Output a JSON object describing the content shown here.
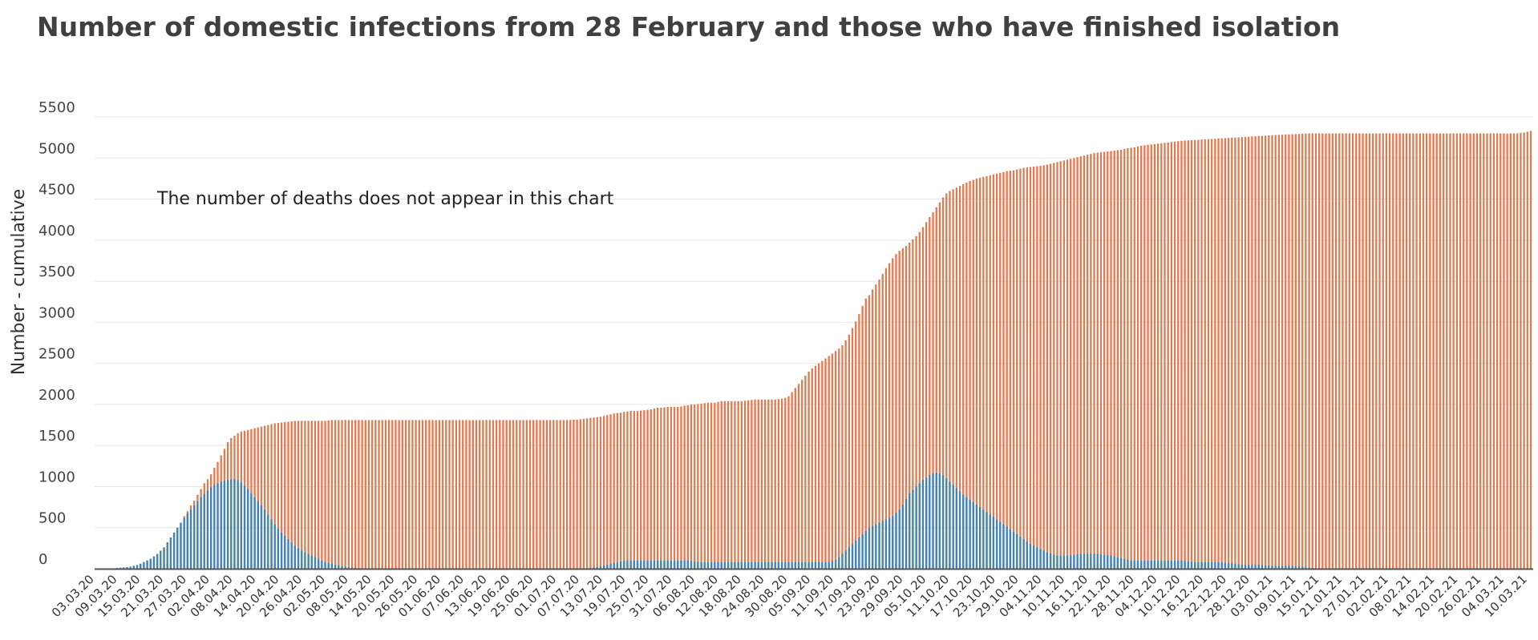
{
  "chart_data": {
    "type": "bar",
    "title": "Number of domestic infections from 28 February and those who have finished isolation",
    "ylabel": "Number - cumulative",
    "xlabel": "",
    "ylim": [
      0,
      5500
    ],
    "yticks": [
      0,
      500,
      1000,
      1500,
      2000,
      2500,
      3000,
      3500,
      4000,
      4500,
      5000,
      5500
    ],
    "annotation": "The number of deaths does not appear in this chart",
    "grid": true,
    "legend": "none",
    "colors": {
      "total": "#e07a50",
      "active": "#3d85b8",
      "grid": "#e4e4e4",
      "axis": "#555555"
    },
    "x_tick_labels": [
      "03.03.20",
      "09.03.20",
      "15.03.20",
      "21.03.20",
      "27.03.20",
      "02.04.20",
      "08.04.20",
      "14.04.20",
      "20.04.20",
      "26.04.20",
      "02.05.20",
      "08.05.20",
      "14.05.20",
      "20.05.20",
      "26.05.20",
      "01.06.20",
      "07.06.20",
      "13.06.20",
      "19.06.20",
      "25.06.20",
      "01.07.20",
      "07.07.20",
      "13.07.20",
      "19.07.20",
      "25.07.20",
      "31.07.20",
      "06.08.20",
      "12.08.20",
      "18.08.20",
      "24.08.20",
      "30.08.20",
      "05.09.20",
      "11.09.20",
      "17.09.20",
      "23.09.20",
      "29.09.20",
      "05.10.20",
      "11.10.20",
      "17.10.20",
      "23.10.20",
      "29.10.20",
      "04.11.20",
      "10.11.20",
      "16.11.20",
      "22.11.20",
      "28.11.20",
      "04.12.20",
      "10.12.20",
      "16.12.20",
      "22.12.20",
      "28.12.20",
      "03.01.21",
      "09.01.21",
      "15.01.21",
      "21.01.21",
      "27.01.21",
      "02.02.21",
      "08.02.21",
      "14.02.21",
      "20.02.21",
      "26.02.21",
      "04.03.21",
      "10.03.21"
    ],
    "series": [
      {
        "key": "total",
        "values": [
          0,
          0,
          3,
          4,
          10,
          12,
          15,
          20,
          25,
          35,
          45,
          60,
          80,
          100,
          120,
          150,
          180,
          220,
          260,
          320,
          380,
          440,
          500,
          560,
          640,
          700,
          770,
          830,
          900,
          970,
          1040,
          1090,
          1150,
          1230,
          1300,
          1380,
          1460,
          1540,
          1590,
          1620,
          1650,
          1670,
          1680,
          1690,
          1700,
          1710,
          1720,
          1730,
          1740,
          1750,
          1760,
          1770,
          1775,
          1780,
          1785,
          1790,
          1795,
          1800,
          1800,
          1800,
          1800,
          1800,
          1800,
          1800,
          1800,
          1800,
          1800,
          1805,
          1810,
          1810,
          1810,
          1810,
          1810,
          1810,
          1810,
          1810,
          1810,
          1810,
          1810,
          1810,
          1810,
          1810,
          1810,
          1810,
          1810,
          1810,
          1810,
          1810,
          1810,
          1810,
          1810,
          1810,
          1810,
          1810,
          1810,
          1810,
          1810,
          1810,
          1810,
          1810,
          1810,
          1810,
          1810,
          1810,
          1810,
          1810,
          1810,
          1810,
          1810,
          1810,
          1810,
          1810,
          1810,
          1810,
          1810,
          1810,
          1810,
          1810,
          1810,
          1810,
          1810,
          1810,
          1810,
          1810,
          1810,
          1810,
          1810,
          1810,
          1810,
          1810,
          1810,
          1810,
          1810,
          1810,
          1810,
          1810,
          1810,
          1810,
          1810,
          1812,
          1815,
          1815,
          1820,
          1825,
          1830,
          1835,
          1840,
          1845,
          1850,
          1860,
          1870,
          1880,
          1890,
          1895,
          1900,
          1910,
          1915,
          1920,
          1920,
          1920,
          1925,
          1930,
          1935,
          1940,
          1950,
          1960,
          1960,
          1965,
          1970,
          1970,
          1970,
          1970,
          1975,
          1985,
          1990,
          2000,
          2000,
          2005,
          2010,
          2015,
          2020,
          2020,
          2020,
          2030,
          2040,
          2040,
          2040,
          2040,
          2040,
          2040,
          2040,
          2045,
          2050,
          2055,
          2060,
          2060,
          2060,
          2060,
          2060,
          2060,
          2060,
          2065,
          2070,
          2080,
          2100,
          2150,
          2200,
          2250,
          2300,
          2350,
          2400,
          2440,
          2470,
          2500,
          2530,
          2560,
          2590,
          2620,
          2650,
          2680,
          2720,
          2780,
          2850,
          2930,
          3010,
          3100,
          3200,
          3290,
          3330,
          3400,
          3460,
          3520,
          3590,
          3660,
          3720,
          3780,
          3830,
          3870,
          3900,
          3930,
          3970,
          4010,
          4050,
          4100,
          4160,
          4220,
          4280,
          4340,
          4400,
          4460,
          4520,
          4570,
          4600,
          4620,
          4640,
          4660,
          4680,
          4700,
          4720,
          4735,
          4750,
          4760,
          4770,
          4780,
          4790,
          4800,
          4810,
          4820,
          4830,
          4840,
          4845,
          4850,
          4860,
          4870,
          4880,
          4885,
          4890,
          4895,
          4900,
          4905,
          4910,
          4920,
          4930,
          4940,
          4950,
          4960,
          4970,
          4980,
          4990,
          5000,
          5010,
          5020,
          5030,
          5040,
          5050,
          5060,
          5065,
          5070,
          5075,
          5080,
          5085,
          5090,
          5095,
          5100,
          5110,
          5120,
          5125,
          5130,
          5140,
          5150,
          5155,
          5160,
          5165,
          5170,
          5175,
          5180,
          5185,
          5190,
          5195,
          5200,
          5205,
          5210,
          5212,
          5215,
          5218,
          5220,
          5222,
          5225,
          5228,
          5230,
          5232,
          5235,
          5238,
          5240,
          5242,
          5245,
          5248,
          5250,
          5252,
          5255,
          5258,
          5260,
          5262,
          5265,
          5268,
          5270,
          5272,
          5275,
          5278,
          5280,
          5282,
          5284,
          5286,
          5288,
          5290,
          5292,
          5294,
          5296,
          5298,
          5300,
          5300,
          5300,
          5300,
          5300,
          5300,
          5300,
          5300,
          5300,
          5300,
          5300,
          5300,
          5300,
          5300,
          5300,
          5300,
          5300,
          5300,
          5300,
          5300,
          5300,
          5300,
          5300,
          5300,
          5300,
          5300,
          5300,
          5300,
          5300,
          5300,
          5300,
          5300,
          5300,
          5300,
          5300,
          5300,
          5300,
          5300,
          5300,
          5300,
          5300,
          5300,
          5300,
          5300,
          5300,
          5300,
          5300,
          5300,
          5300,
          5300,
          5300,
          5300,
          5300,
          5300,
          5300,
          5300,
          5300,
          5300,
          5300,
          5300,
          5300,
          5300,
          5300,
          5305,
          5310,
          5320,
          5330
        ]
      },
      {
        "key": "active",
        "values": [
          0,
          0,
          3,
          4,
          10,
          12,
          15,
          20,
          25,
          35,
          45,
          60,
          80,
          100,
          120,
          150,
          180,
          220,
          260,
          320,
          380,
          440,
          500,
          560,
          620,
          670,
          720,
          770,
          820,
          870,
          910,
          950,
          990,
          1020,
          1040,
          1060,
          1070,
          1080,
          1090,
          1090,
          1080,
          1050,
          1010,
          970,
          920,
          870,
          820,
          770,
          720,
          660,
          600,
          540,
          490,
          440,
          400,
          360,
          320,
          280,
          250,
          220,
          200,
          180,
          160,
          140,
          120,
          100,
          80,
          70,
          60,
          50,
          40,
          30,
          25,
          20,
          15,
          10,
          8,
          6,
          5,
          4,
          3,
          2,
          1,
          0,
          0,
          0,
          0,
          0,
          0,
          0,
          0,
          0,
          0,
          0,
          0,
          0,
          0,
          0,
          0,
          0,
          0,
          0,
          0,
          0,
          0,
          0,
          0,
          0,
          0,
          0,
          0,
          0,
          0,
          0,
          0,
          0,
          0,
          0,
          0,
          0,
          0,
          0,
          0,
          0,
          0,
          0,
          0,
          0,
          0,
          0,
          0,
          0,
          0,
          0,
          0,
          0,
          0,
          0,
          0,
          0,
          0,
          0,
          0,
          2,
          5,
          10,
          15,
          20,
          30,
          40,
          50,
          60,
          70,
          80,
          90,
          100,
          100,
          100,
          100,
          100,
          100,
          100,
          100,
          100,
          100,
          100,
          100,
          100,
          100,
          100,
          100,
          100,
          100,
          100,
          100,
          95,
          90,
          85,
          80,
          80,
          80,
          80,
          80,
          80,
          80,
          80,
          80,
          80,
          80,
          80,
          80,
          80,
          80,
          80,
          80,
          80,
          80,
          80,
          80,
          80,
          80,
          80,
          80,
          80,
          80,
          80,
          80,
          80,
          80,
          80,
          80,
          80,
          80,
          80,
          80,
          80,
          80,
          90,
          110,
          140,
          180,
          220,
          260,
          300,
          340,
          380,
          420,
          460,
          500,
          520,
          540,
          560,
          580,
          600,
          620,
          640,
          680,
          720,
          780,
          850,
          920,
          960,
          1000,
          1040,
          1080,
          1110,
          1140,
          1160,
          1170,
          1160,
          1140,
          1100,
          1060,
          1020,
          980,
          940,
          900,
          870,
          840,
          810,
          780,
          750,
          720,
          690,
          660,
          630,
          600,
          570,
          540,
          510,
          480,
          450,
          420,
          390,
          360,
          330,
          300,
          280,
          260,
          240,
          220,
          200,
          185,
          170,
          160,
          160,
          160,
          160,
          165,
          170,
          175,
          180,
          180,
          180,
          180,
          180,
          180,
          175,
          170,
          165,
          160,
          150,
          140,
          130,
          120,
          110,
          100,
          100,
          100,
          100,
          100,
          100,
          100,
          100,
          100,
          100,
          100,
          100,
          100,
          100,
          100,
          100,
          95,
          90,
          85,
          80,
          80,
          80,
          80,
          80,
          80,
          80,
          80,
          80,
          75,
          70,
          65,
          60,
          55,
          50,
          50,
          50,
          50,
          50,
          50,
          45,
          40,
          38,
          35,
          35,
          35,
          35,
          35,
          35,
          35,
          30,
          30,
          25,
          20,
          15,
          10,
          5,
          0,
          0,
          0,
          0,
          0,
          0,
          0,
          0,
          0,
          0,
          0,
          0,
          0,
          0,
          0,
          0,
          0,
          0,
          0,
          0,
          0,
          0,
          0,
          0,
          0,
          0,
          0,
          0,
          0,
          0,
          0,
          0,
          0,
          0,
          0,
          0,
          0,
          0,
          0,
          0,
          0,
          0,
          0,
          0,
          0,
          0,
          0,
          0,
          0,
          0,
          0,
          0,
          0,
          0,
          0,
          0,
          0,
          0,
          0,
          0,
          0,
          0,
          0
        ]
      }
    ]
  }
}
